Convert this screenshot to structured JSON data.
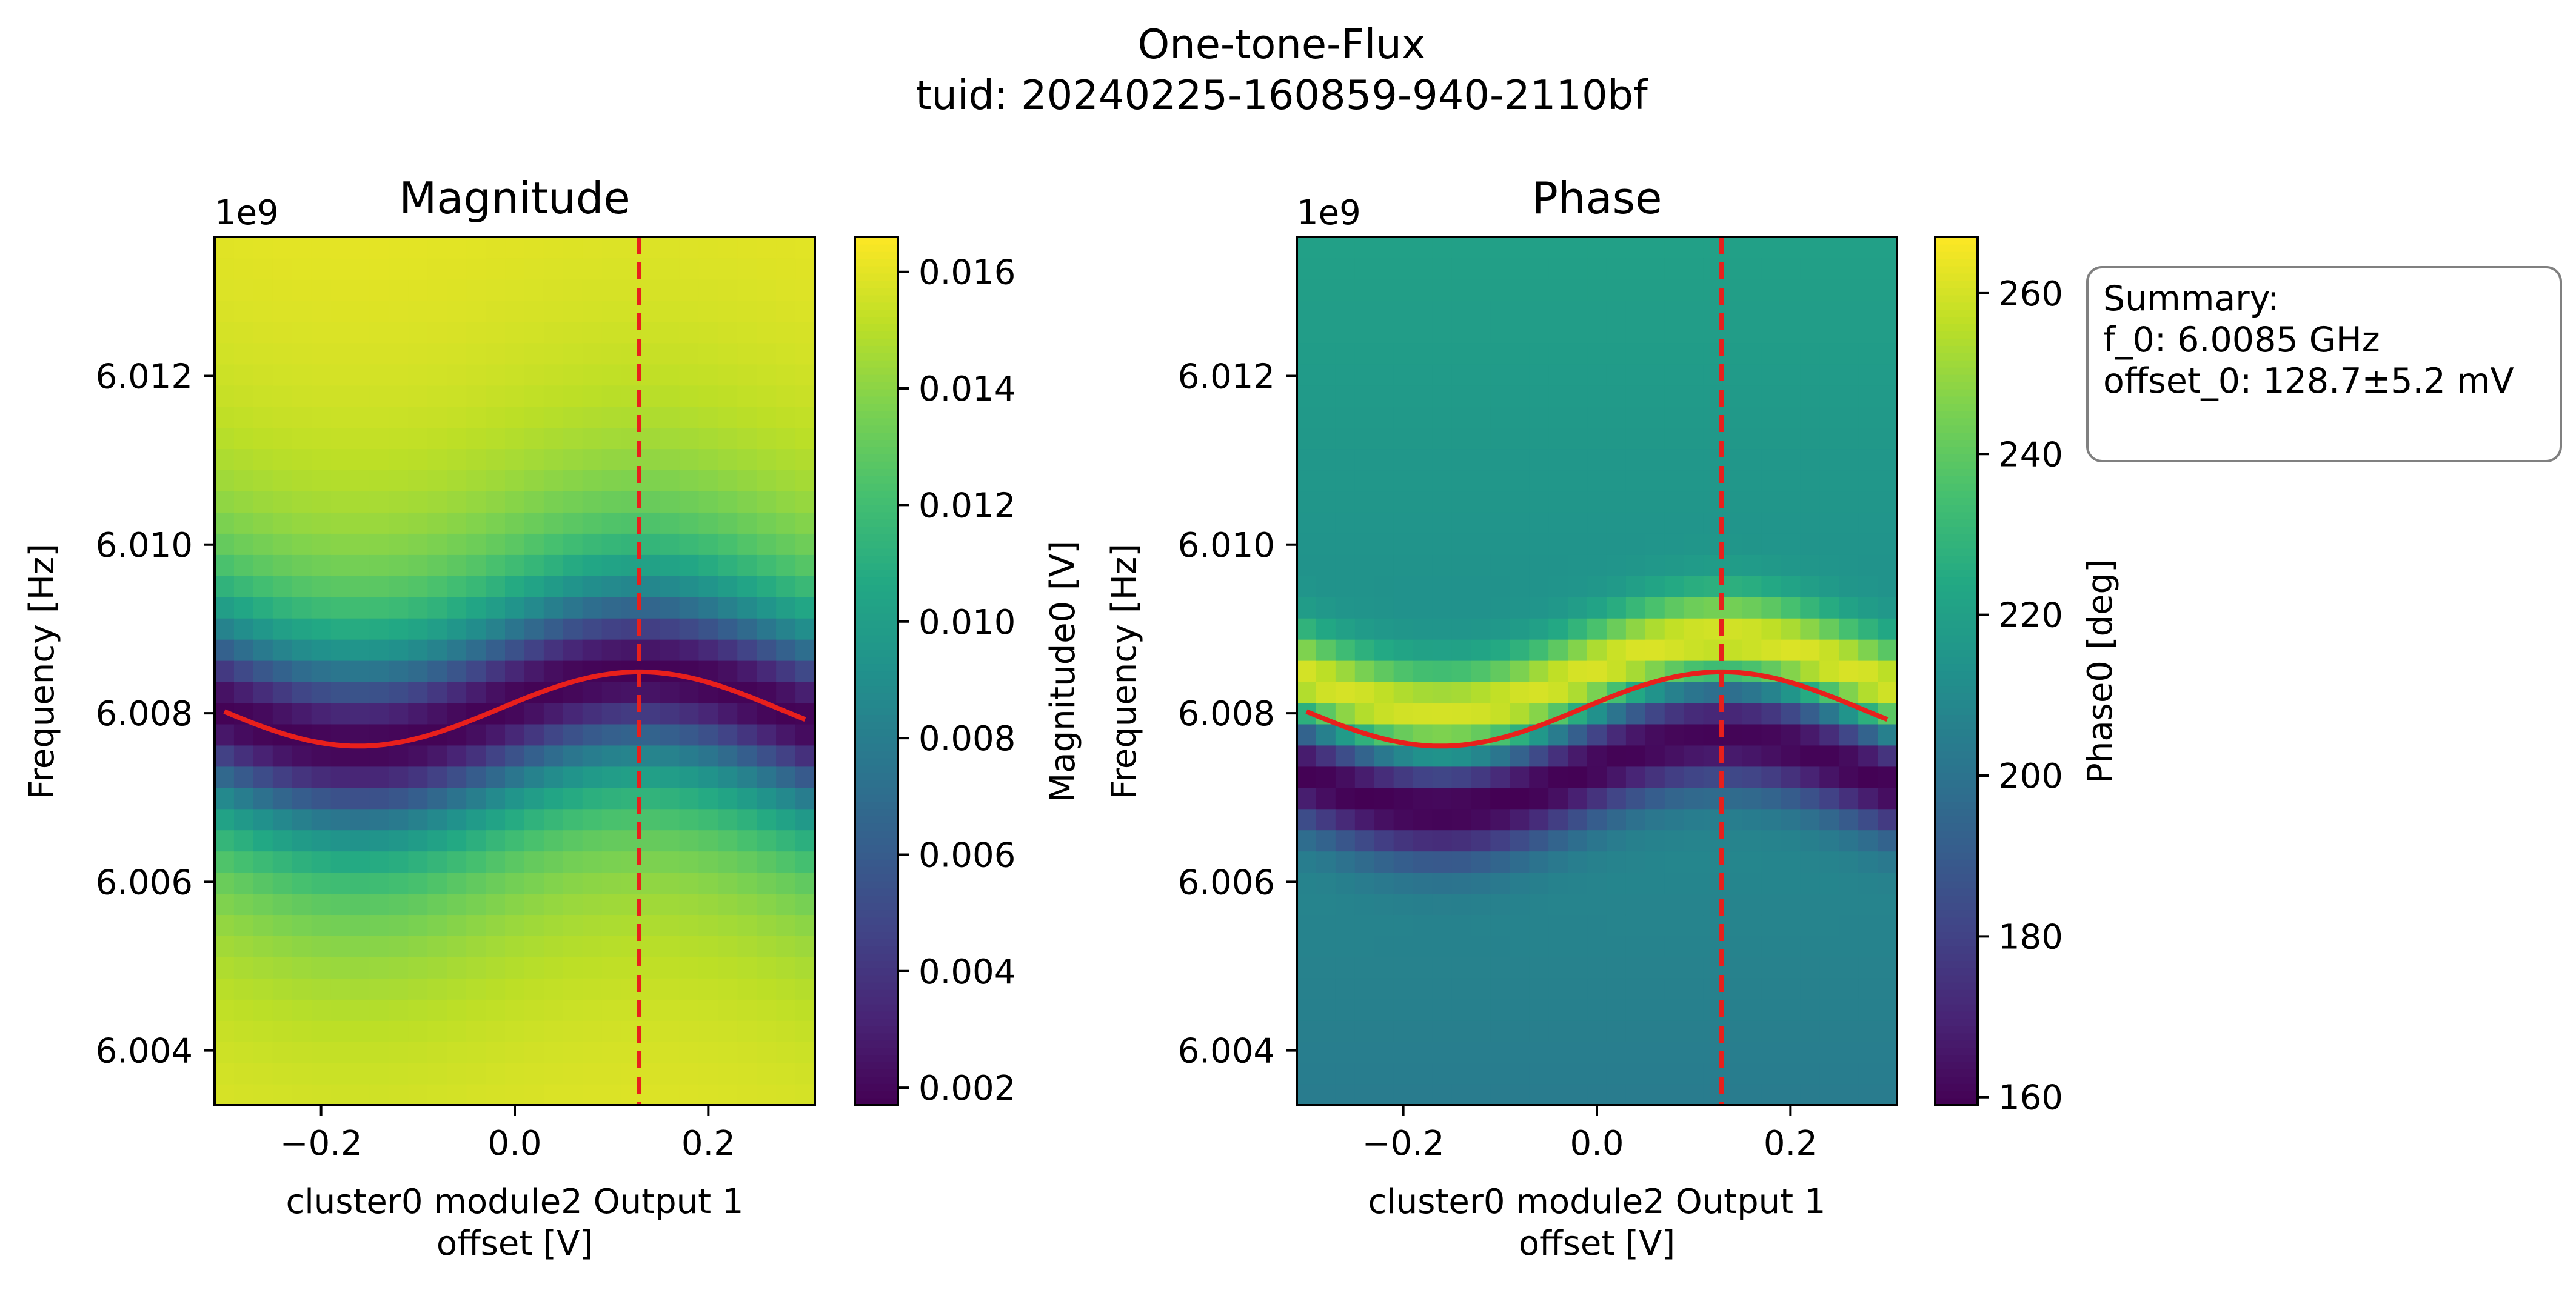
{
  "figure": {
    "title_line1": "One-tone-Flux",
    "title_line2": "tuid: 20240225-160859-940-2110bf"
  },
  "summary": {
    "line1": "Summary:",
    "line2": "f_0: 6.0085 GHz",
    "line3": "offset_0: 128.7±5.2 mV"
  },
  "colors": {
    "fit_line": "#e8201c",
    "colormap": "viridis",
    "summary_border": "#808080"
  },
  "chart_data": [
    {
      "type": "heatmap",
      "title": "Magnitude",
      "xlabel_line1": "cluster0 module2 Output 1",
      "xlabel_line2": "offset [V]",
      "ylabel": "Frequency [Hz]",
      "y_offset_label": "1e9",
      "colorbar_label": "Magnitude0 [V]",
      "xlim": [
        -0.31,
        0.31
      ],
      "ylim": [
        6.00335,
        6.01365
      ],
      "x_ticks": [
        {
          "value": -0.2,
          "label": "−0.2"
        },
        {
          "value": 0.0,
          "label": "0.0"
        },
        {
          "value": 0.2,
          "label": "0.2"
        }
      ],
      "y_ticks": [
        {
          "value": 6.004,
          "label": "6.004"
        },
        {
          "value": 6.006,
          "label": "6.006"
        },
        {
          "value": 6.008,
          "label": "6.008"
        },
        {
          "value": 6.01,
          "label": "6.010"
        },
        {
          "value": 6.012,
          "label": "6.012"
        }
      ],
      "clim": [
        0.0017,
        0.0166
      ],
      "colorbar_ticks": [
        {
          "value": 0.002,
          "label": "0.002"
        },
        {
          "value": 0.004,
          "label": "0.004"
        },
        {
          "value": 0.006,
          "label": "0.006"
        },
        {
          "value": 0.008,
          "label": "0.008"
        },
        {
          "value": 0.01,
          "label": "0.010"
        },
        {
          "value": 0.012,
          "label": "0.012"
        },
        {
          "value": 0.014,
          "label": "0.014"
        },
        {
          "value": 0.016,
          "label": "0.016"
        }
      ],
      "grid": false,
      "dashed_line_x": 0.1287,
      "fit_curve": {
        "offset_center": 6.00805,
        "amplitude": 0.00044,
        "period": 0.58,
        "x_peak": 0.1287
      },
      "resonance_model": {
        "depth_min": 0.0018,
        "depth_max": 0.0165,
        "width_ghz": 0.0011
      }
    },
    {
      "type": "heatmap",
      "title": "Phase",
      "xlabel_line1": "cluster0 module2 Output 1",
      "xlabel_line2": "offset [V]",
      "ylabel": "Frequency [Hz]",
      "y_offset_label": "1e9",
      "colorbar_label": "Phase0 [deg]",
      "xlim": [
        -0.31,
        0.31
      ],
      "ylim": [
        6.00335,
        6.01365
      ],
      "x_ticks": [
        {
          "value": -0.2,
          "label": "−0.2"
        },
        {
          "value": 0.0,
          "label": "0.0"
        },
        {
          "value": 0.2,
          "label": "0.2"
        }
      ],
      "y_ticks": [
        {
          "value": 6.004,
          "label": "6.004"
        },
        {
          "value": 6.006,
          "label": "6.006"
        },
        {
          "value": 6.008,
          "label": "6.008"
        },
        {
          "value": 6.01,
          "label": "6.010"
        },
        {
          "value": 6.012,
          "label": "6.012"
        }
      ],
      "clim": [
        159,
        267
      ],
      "colorbar_ticks": [
        {
          "value": 160,
          "label": "160"
        },
        {
          "value": 180,
          "label": "180"
        },
        {
          "value": 200,
          "label": "200"
        },
        {
          "value": 220,
          "label": "220"
        },
        {
          "value": 240,
          "label": "240"
        },
        {
          "value": 260,
          "label": "260"
        }
      ],
      "grid": false,
      "dashed_line_x": 0.1287,
      "fit_curve": {
        "offset_center": 6.00805,
        "amplitude": 0.00044,
        "period": 0.58,
        "x_peak": 0.1287
      }
    }
  ]
}
